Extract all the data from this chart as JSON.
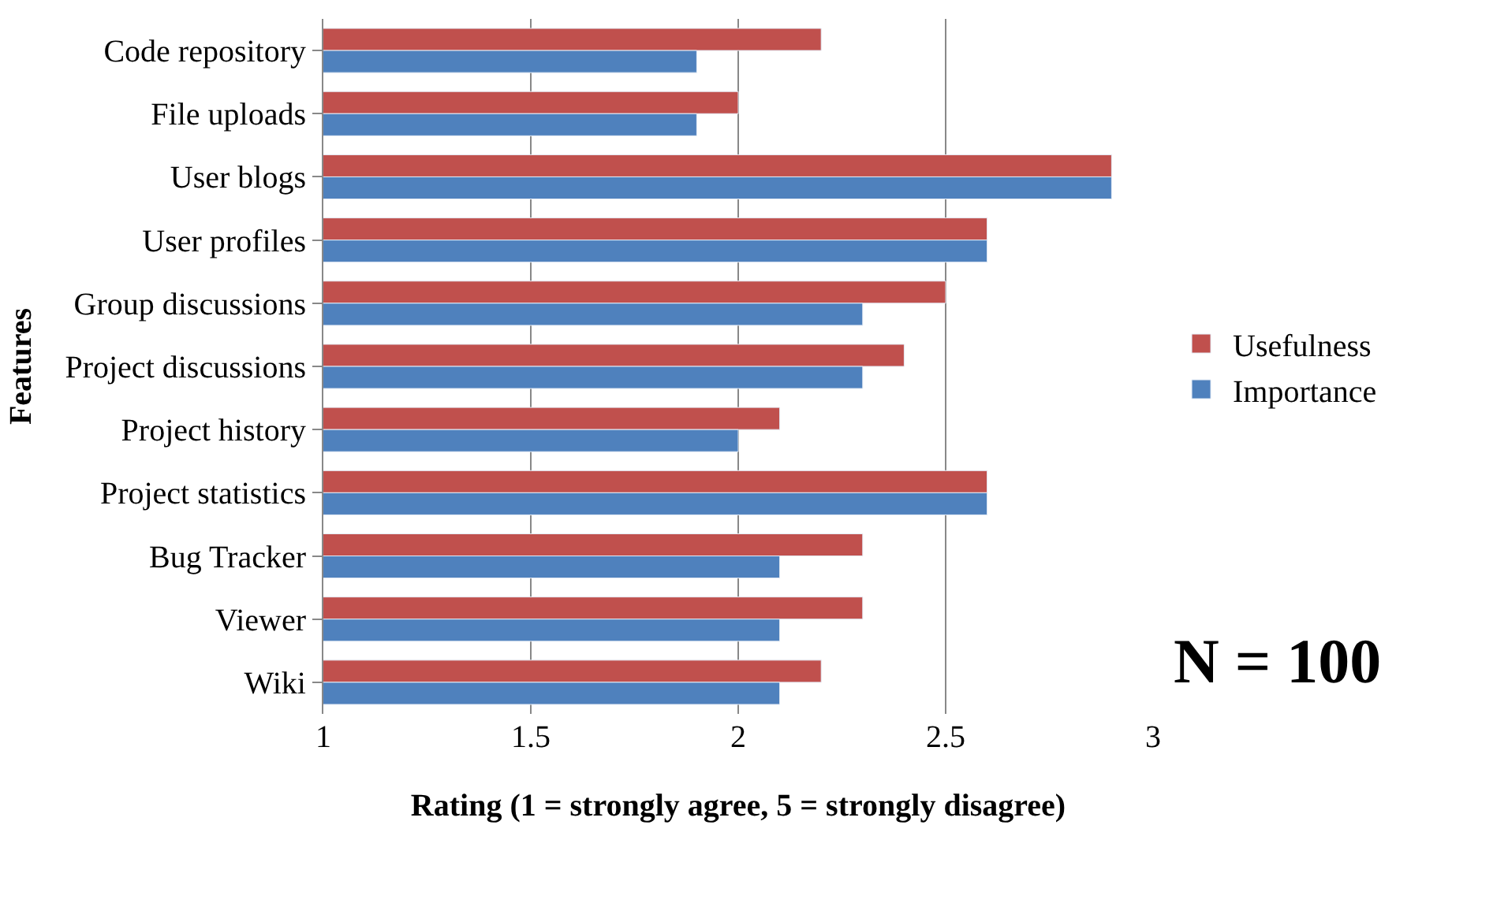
{
  "chart_data": {
    "type": "bar",
    "orientation": "horizontal",
    "categories": [
      "Code repository",
      "File uploads",
      "User blogs",
      "User profiles",
      "Group discussions",
      "Project discussions",
      "Project history",
      "Project statistics",
      "Bug Tracker",
      "Viewer",
      "Wiki"
    ],
    "series": [
      {
        "name": "Usefulness",
        "color": "#c0504d",
        "values": [
          2.2,
          2.0,
          2.9,
          2.6,
          2.5,
          2.4,
          2.1,
          2.6,
          2.3,
          2.3,
          2.2
        ]
      },
      {
        "name": "Importance",
        "color": "#4f81bd",
        "values": [
          1.9,
          1.9,
          2.9,
          2.6,
          2.3,
          2.3,
          2.0,
          2.6,
          2.1,
          2.1,
          2.1
        ]
      }
    ],
    "xlabel": "Rating (1 = strongly agree, 5 = strongly disagree)",
    "ylabel": "Features",
    "xlim": [
      1,
      3
    ],
    "xticks": [
      1,
      1.5,
      2,
      2.5,
      3
    ],
    "grid": "x",
    "legend": "right",
    "annotations": [
      "N = 100"
    ]
  }
}
